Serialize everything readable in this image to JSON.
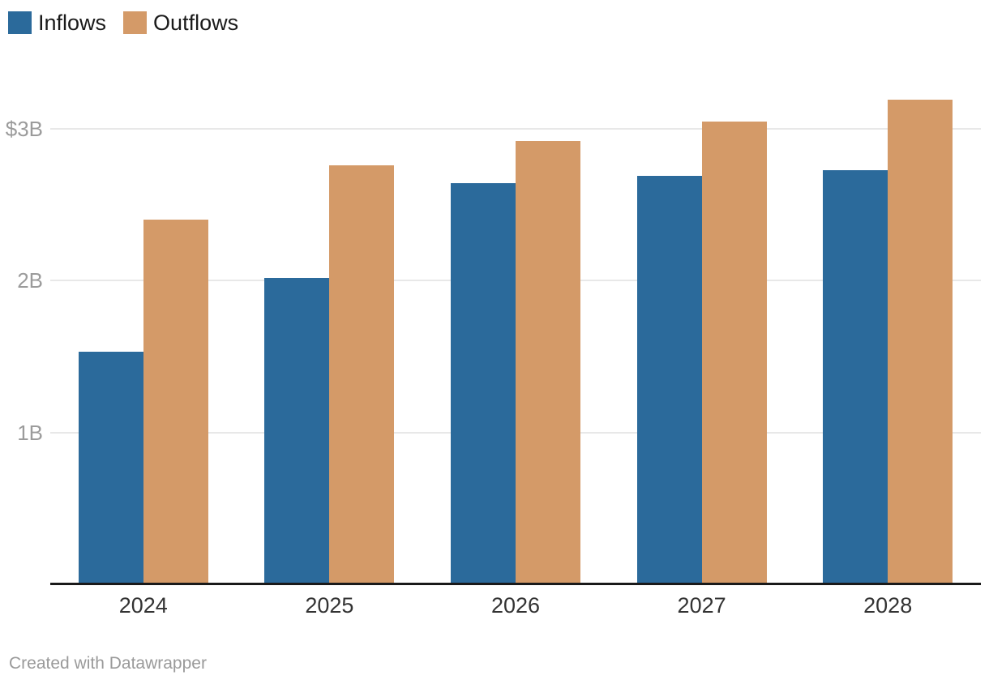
{
  "chart_data": {
    "type": "bar",
    "title": "",
    "categories": [
      "2024",
      "2025",
      "2026",
      "2027",
      "2028"
    ],
    "series": [
      {
        "name": "Inflows",
        "color": "#2b6a9b",
        "values": [
          1.53,
          2.02,
          2.64,
          2.69,
          2.73
        ]
      },
      {
        "name": "Outflows",
        "color": "#d49a68",
        "values": [
          2.4,
          2.76,
          2.92,
          3.05,
          3.19
        ]
      }
    ],
    "y_ticks": [
      {
        "value": 3,
        "label": "$3B"
      },
      {
        "value": 2,
        "label": "2B"
      },
      {
        "value": 1,
        "label": "1B"
      }
    ],
    "ylim": [
      0,
      3.3
    ],
    "xlabel": "",
    "ylabel": "",
    "grid": "horizontal",
    "legend_position": "top-left"
  },
  "colors": {
    "inflows": "#2b6a9b",
    "outflows": "#d49a68",
    "axis_line": "#1a1a1a",
    "gridline": "#e8e8e8",
    "y_label": "#9b9b9b",
    "x_label": "#333333",
    "footer_text": "#9a9a9a"
  },
  "footer": {
    "text": "Created with Datawrapper"
  }
}
